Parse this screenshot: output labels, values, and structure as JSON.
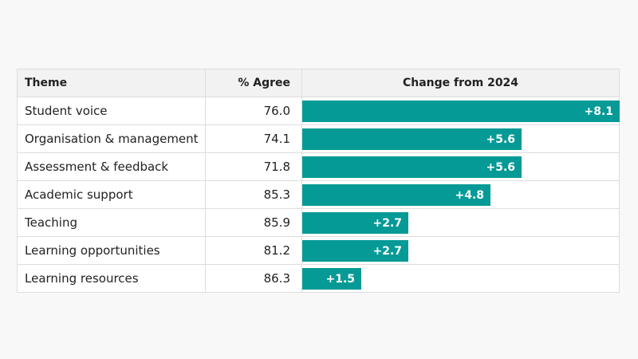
{
  "chart_data": {
    "type": "bar",
    "orientation": "horizontal",
    "title": "",
    "columns": [
      "Theme",
      "% Agree",
      "Change from 2024"
    ],
    "categories": [
      "Student voice",
      "Organisation & management",
      "Assessment & feedback",
      "Academic support",
      "Teaching",
      "Learning opportunities",
      "Learning resources"
    ],
    "agree": [
      "76.0",
      "74.1",
      "71.8",
      "85.3",
      "85.9",
      "81.2",
      "86.3"
    ],
    "change_values": [
      8.1,
      5.6,
      5.6,
      4.8,
      2.7,
      2.7,
      1.5
    ],
    "change_labels": [
      "+8.1",
      "+5.6",
      "+5.6",
      "+4.8",
      "+2.7",
      "+2.7",
      "+1.5"
    ],
    "xlim": [
      0,
      8.1
    ],
    "bar_color": "#069a96"
  }
}
